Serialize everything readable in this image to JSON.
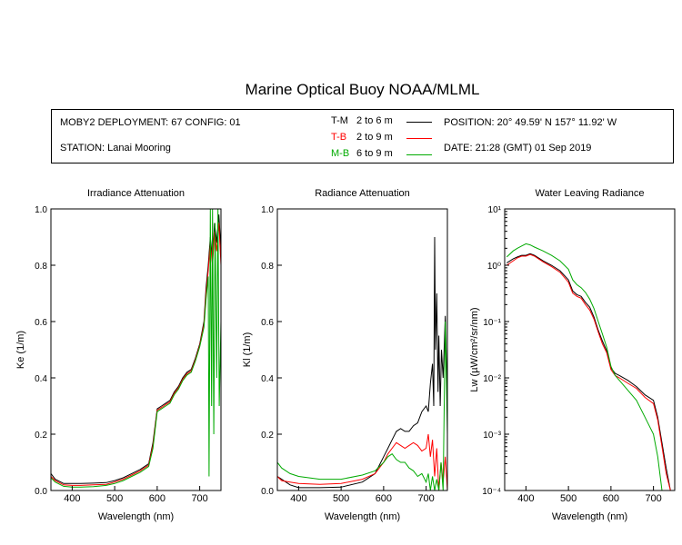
{
  "title": "Marine Optical Buoy NOAA/MLML",
  "info": {
    "deployment": "MOBY2 DEPLOYMENT: 67 CONFIG: 01",
    "station": "STATION: Lanai Mooring",
    "position": "POSITION: 20° 49.59' N   157° 11.92' W",
    "date": "DATE: 21:28 (GMT) 01 Sep 2019"
  },
  "legend": [
    {
      "code": "T-M",
      "range": "2 to 6  m",
      "color": "#000000"
    },
    {
      "code": "T-B",
      "range": "2 to 9  m",
      "color": "#ff0000"
    },
    {
      "code": "M-B",
      "range": "6 to 9  m",
      "color": "#00aa00"
    }
  ],
  "chart_data": [
    {
      "type": "line",
      "title": "Irradiance Attenuation",
      "xlabel": "Wavelength (nm)",
      "ylabel": "Ke  (1/m)",
      "xlim": [
        350,
        750
      ],
      "ylim": [
        0,
        1.0
      ],
      "xticks": [
        400,
        500,
        600,
        700
      ],
      "yticks": [
        0.0,
        0.2,
        0.4,
        0.6,
        0.8,
        1.0
      ],
      "ytick_labels": [
        "0.0",
        "0.2",
        "0.4",
        "0.6",
        "0.8",
        "1.0"
      ],
      "scale": "linear",
      "series": [
        {
          "name": "T-M",
          "color": "#000000",
          "x": [
            350,
            360,
            380,
            400,
            420,
            450,
            480,
            500,
            520,
            540,
            560,
            580,
            590,
            600,
            610,
            620,
            630,
            640,
            650,
            660,
            670,
            680,
            690,
            700,
            710,
            715,
            720,
            725,
            730,
            735,
            740,
            745,
            750
          ],
          "y": [
            0.06,
            0.04,
            0.025,
            0.025,
            0.025,
            0.026,
            0.028,
            0.035,
            0.045,
            0.06,
            0.075,
            0.095,
            0.17,
            0.29,
            0.3,
            0.31,
            0.32,
            0.35,
            0.37,
            0.4,
            0.42,
            0.43,
            0.47,
            0.52,
            0.6,
            0.72,
            0.8,
            0.9,
            0.82,
            0.95,
            0.88,
            0.98,
            0.85
          ]
        },
        {
          "name": "T-B",
          "color": "#ff0000",
          "x": [
            350,
            360,
            380,
            400,
            420,
            450,
            480,
            500,
            520,
            540,
            560,
            580,
            590,
            600,
            610,
            620,
            630,
            640,
            650,
            660,
            670,
            680,
            690,
            700,
            710,
            715,
            720,
            725,
            730,
            735,
            740,
            745,
            750
          ],
          "y": [
            0.05,
            0.035,
            0.02,
            0.018,
            0.018,
            0.02,
            0.022,
            0.03,
            0.04,
            0.055,
            0.07,
            0.09,
            0.16,
            0.285,
            0.295,
            0.305,
            0.315,
            0.345,
            0.365,
            0.395,
            0.415,
            0.425,
            0.465,
            0.515,
            0.59,
            0.7,
            0.78,
            0.88,
            0.8,
            0.92,
            0.85,
            0.95,
            0.8
          ]
        },
        {
          "name": "M-B",
          "color": "#00aa00",
          "x": [
            350,
            360,
            380,
            400,
            420,
            450,
            480,
            500,
            520,
            540,
            560,
            580,
            590,
            600,
            610,
            620,
            630,
            640,
            650,
            660,
            670,
            680,
            690,
            700,
            710,
            715,
            720,
            722,
            725,
            728,
            730,
            733,
            736,
            740,
            743,
            746,
            750
          ],
          "y": [
            0.045,
            0.03,
            0.015,
            0.012,
            0.012,
            0.014,
            0.018,
            0.025,
            0.035,
            0.05,
            0.065,
            0.085,
            0.15,
            0.28,
            0.29,
            0.3,
            0.31,
            0.34,
            0.36,
            0.39,
            0.41,
            0.42,
            0.46,
            0.51,
            0.58,
            0.68,
            0.76,
            0.05,
            1.0,
            0.3,
            1.0,
            0.2,
            0.95,
            0.4,
            1.0,
            0.3,
            0.6
          ]
        }
      ]
    },
    {
      "type": "line",
      "title": "Radiance Attenuation",
      "xlabel": "Wavelength (nm)",
      "ylabel": "Kl  (1/m)",
      "xlim": [
        350,
        750
      ],
      "ylim": [
        0,
        1.0
      ],
      "xticks": [
        400,
        500,
        600,
        700
      ],
      "yticks": [
        0.0,
        0.2,
        0.4,
        0.6,
        0.8,
        1.0
      ],
      "ytick_labels": [
        "0.0",
        "0.2",
        "0.4",
        "0.6",
        "0.8",
        "1.0"
      ],
      "scale": "linear",
      "series": [
        {
          "name": "T-M",
          "color": "#000000",
          "x": [
            350,
            360,
            380,
            400,
            450,
            500,
            550,
            580,
            600,
            610,
            620,
            630,
            640,
            650,
            660,
            670,
            680,
            690,
            700,
            705,
            710,
            715,
            718,
            720,
            722,
            725,
            728,
            730,
            733,
            736,
            740,
            745,
            750
          ],
          "y": [
            0.05,
            0.04,
            0.02,
            0.01,
            0.01,
            0.012,
            0.03,
            0.06,
            0.12,
            0.15,
            0.18,
            0.21,
            0.22,
            0.21,
            0.21,
            0.23,
            0.24,
            0.28,
            0.3,
            0.28,
            0.38,
            0.45,
            0.3,
            0.9,
            0.5,
            0.7,
            0.35,
            0.55,
            0.3,
            0.5,
            0.4,
            0.62,
            0.3
          ]
        },
        {
          "name": "T-B",
          "color": "#ff0000",
          "x": [
            350,
            360,
            380,
            400,
            450,
            500,
            550,
            580,
            600,
            610,
            620,
            630,
            640,
            650,
            660,
            670,
            680,
            690,
            700,
            705,
            710,
            715,
            720,
            725,
            730,
            735,
            740,
            745,
            750
          ],
          "y": [
            0.05,
            0.035,
            0.03,
            0.025,
            0.022,
            0.025,
            0.04,
            0.06,
            0.1,
            0.13,
            0.15,
            0.17,
            0.16,
            0.15,
            0.16,
            0.17,
            0.16,
            0.14,
            0.15,
            0.2,
            0.12,
            0.18,
            0.05,
            0.15,
            0.0,
            0.1,
            0.03,
            0.12,
            0.0
          ]
        },
        {
          "name": "M-B",
          "color": "#00aa00",
          "x": [
            350,
            360,
            380,
            400,
            450,
            500,
            550,
            580,
            600,
            610,
            620,
            630,
            640,
            650,
            660,
            670,
            680,
            690,
            700,
            705,
            710,
            715,
            720,
            725,
            730,
            735,
            740,
            745,
            750
          ],
          "y": [
            0.1,
            0.08,
            0.06,
            0.05,
            0.04,
            0.04,
            0.055,
            0.07,
            0.1,
            0.12,
            0.13,
            0.11,
            0.1,
            0.1,
            0.08,
            0.07,
            0.05,
            0.06,
            0.03,
            0.06,
            0.0,
            0.05,
            0.0,
            0.04,
            0.0,
            0.1,
            0.0,
            0.6,
            0.2
          ]
        }
      ]
    },
    {
      "type": "line",
      "title": "Water Leaving Radiance",
      "xlabel": "Wavelength (nm)",
      "ylabel": "Lw  (µW/cm²/sr/nm)",
      "xlim": [
        350,
        750
      ],
      "ylim": [
        0.0001,
        10
      ],
      "xticks": [
        400,
        500,
        600,
        700
      ],
      "yticks": [
        0.0001,
        0.001,
        0.01,
        0.1,
        1,
        10
      ],
      "ytick_labels": [
        "10⁻⁴",
        "10⁻³",
        "10⁻²",
        "10⁻¹",
        "10⁰",
        "10¹"
      ],
      "scale": "log",
      "series": [
        {
          "name": "T-M",
          "color": "#000000",
          "x": [
            355,
            370,
            380,
            390,
            400,
            410,
            420,
            440,
            460,
            480,
            500,
            510,
            520,
            530,
            540,
            550,
            560,
            570,
            580,
            590,
            600,
            610,
            620,
            640,
            660,
            680,
            700,
            710,
            720,
            730,
            740
          ],
          "y": [
            1.1,
            1.3,
            1.4,
            1.5,
            1.5,
            1.6,
            1.5,
            1.2,
            1.0,
            0.8,
            0.55,
            0.35,
            0.3,
            0.28,
            0.22,
            0.18,
            0.12,
            0.07,
            0.045,
            0.03,
            0.015,
            0.012,
            0.011,
            0.009,
            0.007,
            0.005,
            0.004,
            0.002,
            0.0007,
            0.00025,
            0.0001
          ]
        },
        {
          "name": "T-B",
          "color": "#ff0000",
          "x": [
            355,
            370,
            380,
            390,
            400,
            410,
            420,
            440,
            460,
            480,
            500,
            510,
            520,
            530,
            540,
            550,
            560,
            570,
            580,
            590,
            600,
            610,
            620,
            640,
            660,
            680,
            700,
            710,
            720,
            730,
            740
          ],
          "y": [
            1.0,
            1.2,
            1.35,
            1.45,
            1.45,
            1.55,
            1.45,
            1.15,
            0.95,
            0.75,
            0.5,
            0.32,
            0.28,
            0.26,
            0.2,
            0.16,
            0.11,
            0.065,
            0.04,
            0.028,
            0.014,
            0.011,
            0.01,
            0.008,
            0.0065,
            0.0045,
            0.0035,
            0.0018,
            0.0006,
            0.0002,
            0.0001
          ]
        },
        {
          "name": "M-B",
          "color": "#00aa00",
          "x": [
            355,
            370,
            380,
            390,
            400,
            410,
            420,
            440,
            460,
            480,
            500,
            510,
            520,
            530,
            540,
            550,
            560,
            570,
            580,
            590,
            600,
            610,
            620,
            640,
            660,
            680,
            700,
            710,
            720
          ],
          "y": [
            1.4,
            1.8,
            2.0,
            2.2,
            2.4,
            2.3,
            2.1,
            1.8,
            1.5,
            1.2,
            0.85,
            0.55,
            0.45,
            0.4,
            0.33,
            0.25,
            0.17,
            0.1,
            0.06,
            0.035,
            0.016,
            0.011,
            0.009,
            0.006,
            0.004,
            0.002,
            0.001,
            0.0004,
            0.0001
          ]
        }
      ]
    }
  ]
}
